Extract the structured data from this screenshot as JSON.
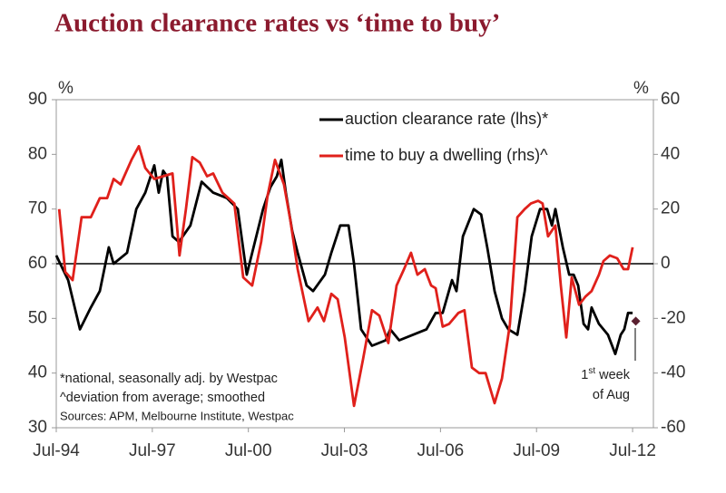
{
  "chart_data": {
    "type": "line",
    "title": "Auction clearance rates vs ‘time to buy’",
    "y_unit": "%",
    "y2_unit": "%",
    "xlim": [
      1994.5,
      2013.15
    ],
    "xticks": [
      {
        "value": 1994.5,
        "label": "Jul-94"
      },
      {
        "value": 1997.5,
        "label": "Jul-97"
      },
      {
        "value": 2000.5,
        "label": "Jul-00"
      },
      {
        "value": 2003.5,
        "label": "Jul-03"
      },
      {
        "value": 2006.5,
        "label": "Jul-06"
      },
      {
        "value": 2009.5,
        "label": "Jul-09"
      },
      {
        "value": 2012.5,
        "label": "Jul-12"
      }
    ],
    "ylim": [
      30,
      90
    ],
    "yticks": [
      30,
      40,
      50,
      60,
      70,
      80,
      90
    ],
    "y2lim": [
      -60,
      60
    ],
    "y2ticks": [
      -60,
      -40,
      -20,
      0,
      20,
      40,
      60
    ],
    "zero_line": true,
    "legend": "top-right",
    "series": [
      {
        "name": "auction clearance rate (lhs)*",
        "color": "#000000",
        "x": [
          1994.5,
          1994.87,
          1995.24,
          1995.58,
          1995.86,
          1996.14,
          1996.29,
          1996.71,
          1997.0,
          1997.28,
          1997.56,
          1997.7,
          1997.84,
          1997.96,
          1998.13,
          1998.33,
          1998.69,
          1999.04,
          1999.4,
          1999.83,
          2000.17,
          2000.45,
          2000.62,
          2000.96,
          2001.19,
          2001.39,
          2001.53,
          2001.67,
          2001.87,
          2002.04,
          2002.32,
          2002.52,
          2002.89,
          2003.09,
          2003.37,
          2003.63,
          2003.8,
          2004.02,
          2004.36,
          2004.79,
          2004.93,
          2005.21,
          2005.64,
          2006.06,
          2006.35,
          2006.57,
          2006.86,
          2007.0,
          2007.2,
          2007.54,
          2007.77,
          2007.96,
          2008.19,
          2008.42,
          2008.62,
          2008.9,
          2009.13,
          2009.35,
          2009.61,
          2009.83,
          2009.98,
          2010.09,
          2010.32,
          2010.52,
          2010.66,
          2010.8,
          2010.97,
          2011.11,
          2011.22,
          2011.45,
          2011.73,
          2011.96,
          2012.13,
          2012.24,
          2012.36,
          2012.5
        ],
        "values": [
          61.5,
          57,
          48,
          52,
          55,
          63,
          60,
          62,
          70,
          73,
          78,
          73,
          77,
          76,
          65,
          64,
          67,
          75,
          73,
          72,
          70,
          58,
          62,
          70,
          74,
          76,
          79,
          73,
          66,
          62,
          56,
          55,
          58,
          62,
          67,
          67,
          60,
          48,
          45,
          46,
          48,
          46,
          47,
          48,
          51,
          51,
          57,
          55,
          65,
          70,
          69,
          63,
          55,
          50,
          48,
          47,
          55,
          65,
          70,
          70,
          67,
          70,
          63,
          58,
          58,
          56,
          49,
          48,
          52,
          49,
          47,
          43.5,
          47,
          48,
          51,
          51
        ]
      },
      {
        "name": "time to buy a dwelling (rhs)^",
        "color": "#e0201b",
        "axis": "y2",
        "x": [
          1994.59,
          1994.78,
          1995.01,
          1995.29,
          1995.58,
          1995.86,
          1996.09,
          1996.29,
          1996.51,
          1996.85,
          1997.08,
          1997.28,
          1997.56,
          1997.84,
          1998.13,
          1998.35,
          1998.55,
          1998.75,
          1998.98,
          1999.21,
          1999.4,
          1999.69,
          2000.06,
          2000.34,
          2000.62,
          2000.9,
          2001.1,
          2001.33,
          2001.61,
          2001.81,
          2002.04,
          2002.38,
          2002.66,
          2002.86,
          2003.09,
          2003.29,
          2003.51,
          2003.8,
          2004.08,
          2004.36,
          2004.59,
          2004.87,
          2005.13,
          2005.36,
          2005.58,
          2005.78,
          2006.01,
          2006.21,
          2006.35,
          2006.57,
          2006.77,
          2007.06,
          2007.25,
          2007.48,
          2007.71,
          2007.91,
          2008.19,
          2008.42,
          2008.67,
          2008.9,
          2009.13,
          2009.32,
          2009.55,
          2009.69,
          2009.86,
          2010.09,
          2010.26,
          2010.43,
          2010.6,
          2010.83,
          2011.03,
          2011.22,
          2011.45,
          2011.59,
          2011.79,
          2012.02,
          2012.22,
          2012.36,
          2012.5
        ],
        "values": [
          20,
          -3,
          -6,
          17,
          17,
          24,
          24,
          31,
          29,
          38,
          43,
          35,
          31,
          32,
          33,
          3,
          20,
          39,
          37,
          32,
          33,
          26,
          22,
          -5,
          -8,
          8,
          25,
          38,
          29,
          16,
          -2,
          -21,
          -16,
          -21,
          -11,
          -13,
          -27,
          -52,
          -35,
          -17,
          -19,
          -29,
          -8,
          -2,
          4,
          -4,
          -2,
          -8,
          -9,
          -23,
          -22,
          -18,
          -17,
          -38,
          -40,
          -40,
          -51,
          -42,
          -22,
          17,
          20,
          22,
          23,
          22,
          10,
          14,
          -8,
          -27,
          -5,
          -15,
          -12,
          -10,
          -4,
          1,
          3,
          2,
          -2,
          -2,
          6
        ]
      }
    ],
    "point": {
      "x": 2012.6,
      "value": 49.5,
      "color": "#5a2030"
    },
    "point_label": {
      "number": "1",
      "sup": "st",
      "rest": " week",
      "line2": "of Aug"
    },
    "notes": [
      "*national, seasonally adj. by Westpac",
      "^deviation from average; smoothed",
      "Sources: APM, Melbourne Institute, Westpac"
    ]
  }
}
